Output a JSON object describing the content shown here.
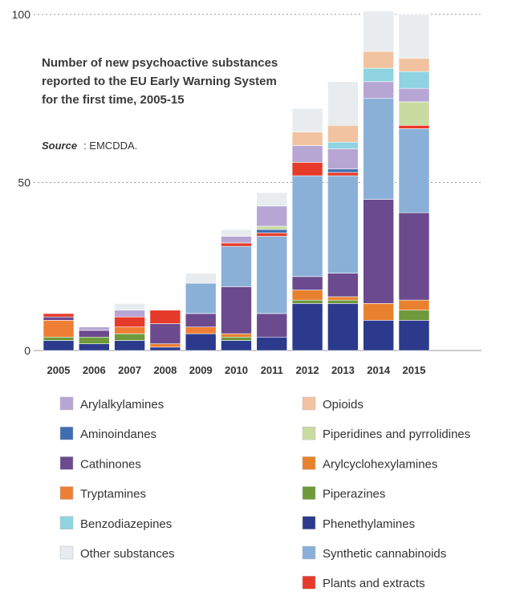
{
  "chart_data": {
    "type": "bar",
    "stacked": true,
    "title_lines": [
      "Number of new psychoactive substances",
      "reported to the EU Early Warning System",
      "for the first time, 2005-15"
    ],
    "source_label": "Source",
    "source_value": ": EMCDDA.",
    "categories": [
      "2005",
      "2006",
      "2007",
      "2008",
      "2009",
      "2010",
      "2011",
      "2012",
      "2013",
      "2014",
      "2015"
    ],
    "ylim": [
      0,
      100
    ],
    "yticks": [
      0,
      50,
      100
    ],
    "grid": true,
    "legend_position": "bottom",
    "series": [
      {
        "name": "Phenethylamines",
        "color": "#2b3a8c",
        "values": [
          3,
          2,
          3,
          1,
          5,
          3,
          4,
          14,
          14,
          9,
          9
        ]
      },
      {
        "name": "Piperazines",
        "color": "#6e9a3c",
        "values": [
          1,
          2,
          2,
          0,
          0,
          1,
          0,
          1,
          1,
          0,
          3
        ]
      },
      {
        "name": "Arylcyclohexylamines",
        "color": "#e8812e",
        "values": [
          0,
          0,
          0,
          0,
          0,
          1,
          0,
          3,
          1,
          5,
          3
        ]
      },
      {
        "name": "Tryptamines",
        "color": "#ef7e35",
        "values": [
          5,
          0,
          2,
          1,
          2,
          0,
          0,
          0,
          0,
          0,
          0
        ]
      },
      {
        "name": "Cathinones",
        "color": "#6b4a8e",
        "values": [
          1,
          2,
          0,
          6,
          4,
          14,
          7,
          4,
          7,
          31,
          26
        ]
      },
      {
        "name": "Synthetic cannabinoids",
        "color": "#8ab0d8",
        "values": [
          0,
          0,
          0,
          0,
          9,
          12,
          23,
          30,
          29,
          30,
          25
        ]
      },
      {
        "name": "Plants and extracts",
        "color": "#e63a2a",
        "values": [
          1,
          0,
          3,
          4,
          0,
          1,
          1,
          4,
          1,
          0,
          1
        ]
      },
      {
        "name": "Aminoindanes",
        "color": "#3f6fb2",
        "values": [
          0,
          0,
          0,
          0,
          0,
          0,
          1,
          0,
          1,
          0,
          0
        ]
      },
      {
        "name": "Piperidines and pyrrolidines",
        "color": "#c9dba0",
        "values": [
          0,
          0,
          0,
          0,
          0,
          0,
          1,
          0,
          0,
          0,
          7
        ]
      },
      {
        "name": "Arylalkylamines",
        "color": "#b7a6d4",
        "values": [
          0,
          1,
          2,
          0,
          0,
          2,
          6,
          5,
          6,
          5,
          4
        ]
      },
      {
        "name": "Benzodiazepines",
        "color": "#8fd4e0",
        "values": [
          0,
          0,
          0,
          0,
          0,
          0,
          0,
          0,
          2,
          4,
          5
        ]
      },
      {
        "name": "Opioids",
        "color": "#f2c3a0",
        "values": [
          0,
          0,
          0,
          0,
          0,
          0,
          0,
          4,
          5,
          5,
          4
        ]
      },
      {
        "name": "Other substances",
        "color": "#e8ecef",
        "values": [
          0,
          0,
          2,
          0,
          3,
          2,
          4,
          7,
          13,
          12,
          13
        ]
      }
    ],
    "legend_columns": [
      [
        "Arylalkylamines",
        "Aminoindanes",
        "Cathinones",
        "Tryptamines",
        "Benzodiazepines",
        "Other substances"
      ],
      [
        "Opioids",
        "Piperidines and pyrrolidines",
        "Arylcyclohexylamines",
        "Piperazines",
        "Phenethylamines",
        "Synthetic cannabinoids",
        "Plants and extracts"
      ]
    ]
  }
}
